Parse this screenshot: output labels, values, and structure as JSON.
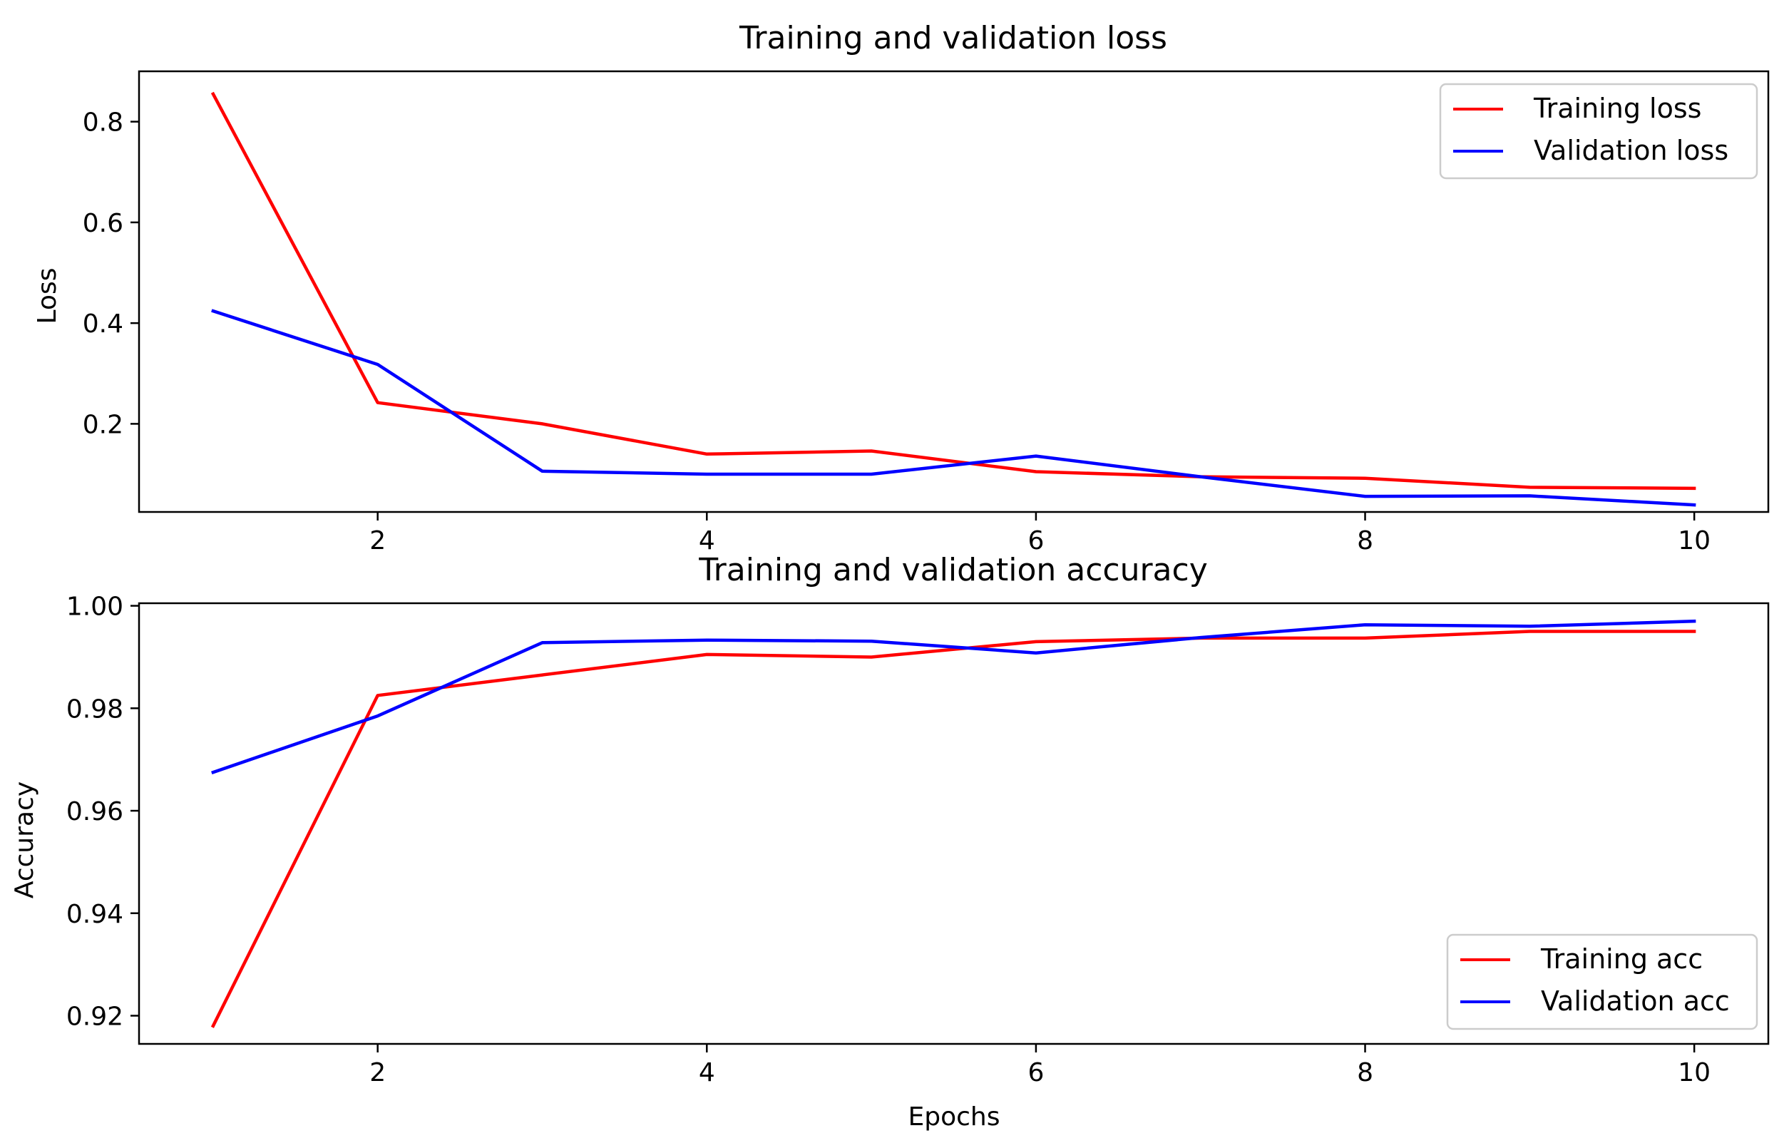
{
  "chart_data": [
    {
      "type": "line",
      "title": "Training and validation loss",
      "xlabel": "",
      "ylabel": "Loss",
      "xlim": [
        0.55,
        10.45
      ],
      "ylim": [
        0.025,
        0.9
      ],
      "xticks": [
        2,
        4,
        6,
        8,
        10
      ],
      "yticks": [
        0.2,
        0.4,
        0.6,
        0.8
      ],
      "x": [
        1,
        2,
        3,
        4,
        5,
        6,
        7,
        8,
        9,
        10
      ],
      "series": [
        {
          "name": "Training loss",
          "color": "#ff0000",
          "values": [
            0.855,
            0.242,
            0.2,
            0.14,
            0.146,
            0.105,
            0.095,
            0.092,
            0.074,
            0.072
          ]
        },
        {
          "name": "Validation loss",
          "color": "#0000ff",
          "values": [
            0.424,
            0.318,
            0.106,
            0.1,
            0.1,
            0.136,
            0.095,
            0.056,
            0.057,
            0.039
          ]
        }
      ],
      "legend": "top-right",
      "grid": false
    },
    {
      "type": "line",
      "title": "Training and validation accuracy",
      "xlabel": "Epochs",
      "ylabel": "Accuracy",
      "xlim": [
        0.55,
        10.45
      ],
      "ylim": [
        0.9145,
        1.0005
      ],
      "xticks": [
        2,
        4,
        6,
        8,
        10
      ],
      "yticks": [
        0.92,
        0.94,
        0.96,
        0.98,
        1.0
      ],
      "ytick_labels": [
        "0.92",
        "0.94",
        "0.96",
        "0.98",
        "1.00"
      ],
      "x": [
        1,
        2,
        3,
        4,
        5,
        6,
        7,
        8,
        9,
        10
      ],
      "series": [
        {
          "name": "Training acc",
          "color": "#ff0000",
          "values": [
            0.918,
            0.9825,
            0.9865,
            0.9905,
            0.99,
            0.993,
            0.9937,
            0.9937,
            0.995,
            0.995
          ]
        },
        {
          "name": "Validation acc",
          "color": "#0000ff",
          "values": [
            0.9675,
            0.9785,
            0.9928,
            0.9933,
            0.9931,
            0.9908,
            0.9938,
            0.9963,
            0.996,
            0.997
          ]
        }
      ],
      "legend": "bottom-right",
      "grid": false
    }
  ]
}
